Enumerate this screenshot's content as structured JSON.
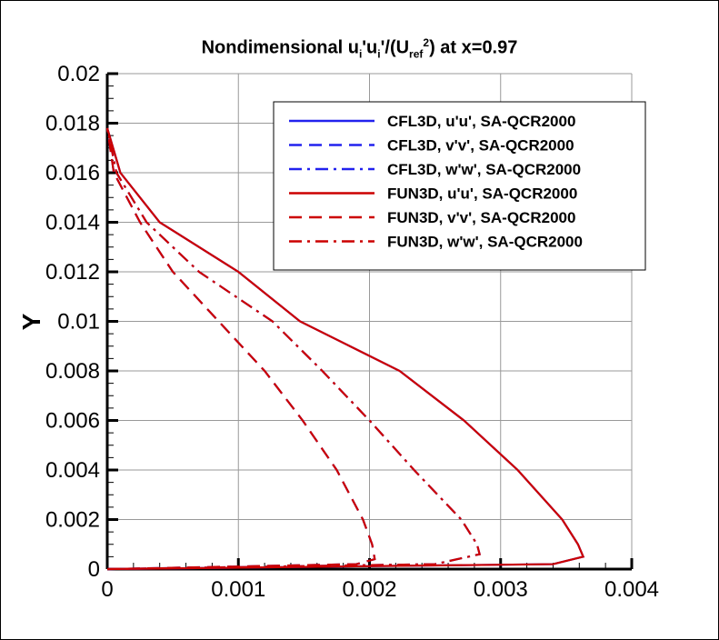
{
  "chart_data": {
    "type": "line",
    "title_parts": {
      "pre": "Nondimensional u",
      "sub1": "i",
      "mid1": "'u",
      "sub2": "i",
      "mid2": "'/(U",
      "sub3": "ref",
      "sup": "2",
      "post": ") at x=0.97"
    },
    "xlabel": "",
    "ylabel": "Y",
    "xlim": [
      0,
      0.004
    ],
    "ylim": [
      0,
      0.02
    ],
    "xticks": [
      "0",
      "0.001",
      "0.002",
      "0.003",
      "0.004"
    ],
    "yticks": [
      "0",
      "0.002",
      "0.004",
      "0.006",
      "0.008",
      "0.01",
      "0.012",
      "0.014",
      "0.016",
      "0.018",
      "0.02"
    ],
    "grid": true,
    "legend_position": "top-right",
    "colors": {
      "CFL3D": "#2222ee",
      "FUN3D": "#cc0000"
    },
    "series": [
      {
        "name": "CFL3D, u'u', SA-QCR2000",
        "color": "#2222ee",
        "style": "solid",
        "x": [
          0,
          0.0034,
          0.00363,
          0.00359,
          0.00347,
          0.00313,
          0.00272,
          0.00223,
          0.00147,
          0.001,
          0.0004,
          0.0001,
          0
        ],
        "y": [
          0,
          0.0002,
          0.0005,
          0.001,
          0.002,
          0.004,
          0.006,
          0.008,
          0.01,
          0.012,
          0.014,
          0.016,
          0.0178
        ]
      },
      {
        "name": "CFL3D, v'v', SA-QCR2000",
        "color": "#2222ee",
        "style": "dashed",
        "x": [
          0,
          0.0019,
          0.00204,
          0.00202,
          0.00195,
          0.00175,
          0.00149,
          0.0012,
          0.00085,
          0.0005,
          0.00025,
          5e-05,
          0
        ],
        "y": [
          0,
          0.0002,
          0.0004,
          0.001,
          0.002,
          0.004,
          0.006,
          0.008,
          0.01,
          0.012,
          0.014,
          0.016,
          0.0178
        ]
      },
      {
        "name": "CFL3D, w'w', SA-QCR2000",
        "color": "#2222ee",
        "style": "dashdot",
        "x": [
          0,
          0.0025,
          0.00284,
          0.00282,
          0.0027,
          0.00234,
          0.002,
          0.00164,
          0.00126,
          0.0007,
          0.0003,
          7e-05,
          0
        ],
        "y": [
          0,
          0.0002,
          0.0006,
          0.001,
          0.002,
          0.004,
          0.006,
          0.008,
          0.01,
          0.012,
          0.014,
          0.016,
          0.0178
        ]
      },
      {
        "name": "FUN3D, u'u', SA-QCR2000",
        "color": "#cc0000",
        "style": "solid",
        "x": [
          0,
          0.0034,
          0.00363,
          0.00359,
          0.00347,
          0.00313,
          0.00272,
          0.00223,
          0.00147,
          0.001,
          0.0004,
          0.0001,
          0
        ],
        "y": [
          0,
          0.0002,
          0.0005,
          0.001,
          0.002,
          0.004,
          0.006,
          0.008,
          0.01,
          0.012,
          0.014,
          0.016,
          0.0178
        ]
      },
      {
        "name": "FUN3D, v'v', SA-QCR2000",
        "color": "#cc0000",
        "style": "dashed",
        "x": [
          0,
          0.0019,
          0.00204,
          0.00202,
          0.00195,
          0.00175,
          0.00149,
          0.0012,
          0.00085,
          0.0005,
          0.00025,
          5e-05,
          0
        ],
        "y": [
          0,
          0.0002,
          0.0004,
          0.001,
          0.002,
          0.004,
          0.006,
          0.008,
          0.01,
          0.012,
          0.014,
          0.016,
          0.0178
        ]
      },
      {
        "name": "FUN3D, w'w', SA-QCR2000",
        "color": "#cc0000",
        "style": "dashdot",
        "x": [
          0,
          0.0025,
          0.00284,
          0.00282,
          0.0027,
          0.00234,
          0.002,
          0.00164,
          0.00126,
          0.0007,
          0.0003,
          7e-05,
          0
        ],
        "y": [
          0,
          0.0002,
          0.0006,
          0.001,
          0.002,
          0.004,
          0.006,
          0.008,
          0.01,
          0.012,
          0.014,
          0.016,
          0.0178
        ]
      }
    ]
  }
}
